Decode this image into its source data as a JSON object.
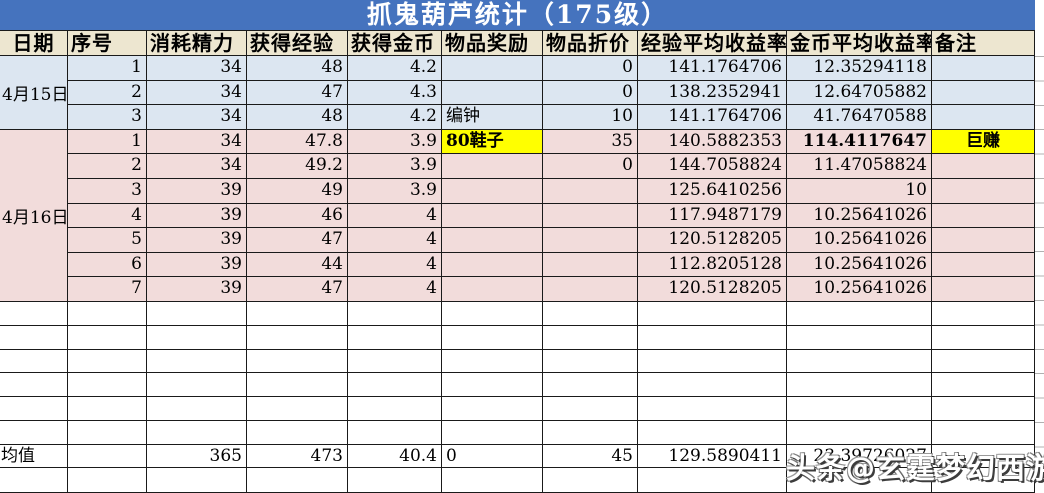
{
  "title": "抓鬼葫芦统计（175级）",
  "watermark": "头条@玄霆梦幻西游",
  "colors": {
    "title_bar": "#4573BE",
    "header_bg": "#EDE6D0",
    "blue_row": "#DCE6F1",
    "pink_row": "#F2DCDB",
    "highlight": "#FFFF00",
    "grid_line": "#1a1a1a"
  },
  "table": {
    "columns": [
      "日期",
      "序号",
      "消耗精力",
      "获得经验",
      "获得金币",
      "物品奖励",
      "物品折价",
      "经验平均收益率",
      "金币平均收益率",
      "备注"
    ],
    "groups": [
      {
        "date": "4月15日",
        "tone": "blue",
        "rows": [
          [
            "1",
            "34",
            "48",
            "4.2",
            "",
            "0",
            "141.1764706",
            "12.35294118",
            ""
          ],
          [
            "2",
            "34",
            "47",
            "4.3",
            "",
            "0",
            "138.2352941",
            "12.64705882",
            ""
          ],
          [
            "3",
            "34",
            "48",
            "4.2",
            "编钟",
            "10",
            "141.1764706",
            "41.76470588",
            ""
          ]
        ]
      },
      {
        "date": "4月16日",
        "tone": "pink",
        "rows": [
          [
            "1",
            "34",
            "47.8",
            "3.9",
            {
              "v": "80鞋子",
              "hl": true,
              "b": true
            },
            "35",
            "140.5882353",
            {
              "v": "114.4117647",
              "b": true
            },
            {
              "v": "巨赚",
              "hl": true,
              "b": true
            }
          ],
          [
            "2",
            "34",
            "49.2",
            "3.9",
            "",
            "0",
            "144.7058824",
            "11.47058824",
            ""
          ],
          [
            "3",
            "39",
            "49",
            "3.9",
            "",
            "",
            "125.6410256",
            "10",
            ""
          ],
          [
            "4",
            "39",
            "46",
            "4",
            "",
            "",
            "117.9487179",
            "10.25641026",
            ""
          ],
          [
            "5",
            "39",
            "47",
            "4",
            "",
            "",
            "120.5128205",
            "10.25641026",
            ""
          ],
          [
            "6",
            "39",
            "44",
            "4",
            "",
            "",
            "112.8205128",
            "10.25641026",
            ""
          ],
          [
            "7",
            "39",
            "47",
            "4",
            "",
            "",
            "120.5128205",
            "10.25641026",
            ""
          ]
        ]
      }
    ],
    "empty_rows_middle": 6,
    "summary": {
      "label": "均值",
      "values": [
        "",
        "365",
        "473",
        "40.4",
        "0",
        "45",
        "129.5890411",
        "23.39726027",
        ""
      ]
    },
    "empty_rows_bottom": 1
  }
}
